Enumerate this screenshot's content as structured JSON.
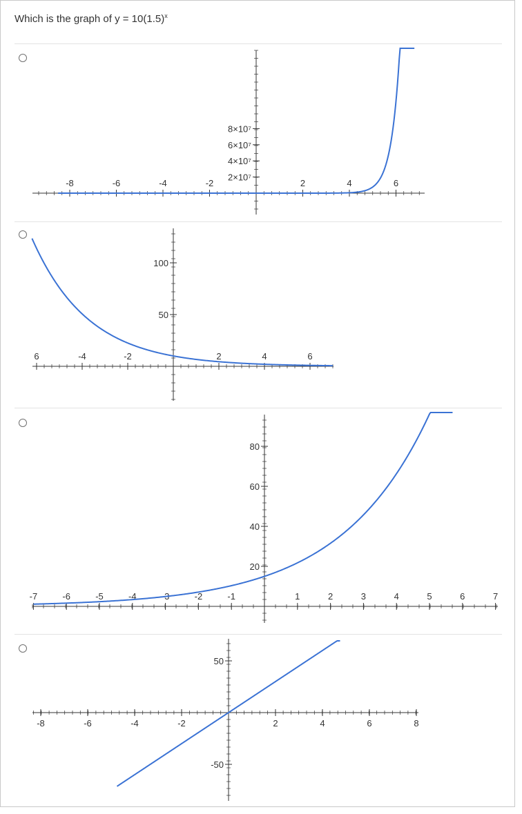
{
  "question": {
    "prefix": "Which is the graph of y = 10(1.5)",
    "superscript": "x"
  },
  "options": [
    {
      "name": "option-a",
      "x_ticks": [
        "-8",
        "-6",
        "-4",
        "-2",
        "2",
        "4",
        "6"
      ],
      "y_ticks": [
        "8×10⁷",
        "6×10⁷",
        "4×10⁷",
        "2×10⁷"
      ]
    },
    {
      "name": "option-b",
      "x_ticks": [
        "6",
        "-4",
        "-2",
        "2",
        "4",
        "6"
      ],
      "y_ticks": [
        "100",
        "50"
      ]
    },
    {
      "name": "option-c",
      "x_ticks": [
        "-7",
        "-6",
        "-5",
        "-4",
        "-3",
        "-2",
        "-1",
        "1",
        "2",
        "3",
        "4",
        "5",
        "6",
        "7"
      ],
      "y_ticks": [
        "80",
        "60",
        "40",
        "20"
      ]
    },
    {
      "name": "option-d",
      "x_ticks": [
        "-8",
        "-6",
        "-4",
        "-2",
        "2",
        "4",
        "6",
        "8"
      ],
      "y_ticks": [
        "50",
        "-50"
      ]
    }
  ],
  "colors": {
    "curve": "#3a72d4",
    "axis": "#333333"
  }
}
